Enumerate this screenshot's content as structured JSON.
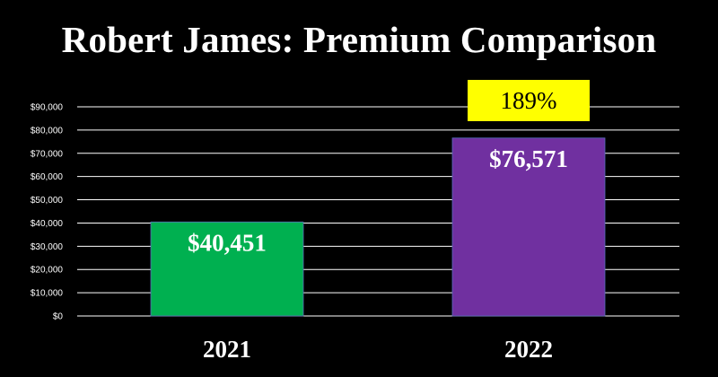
{
  "chart_data": {
    "type": "bar",
    "title": "Robert James: Premium Comparison",
    "categories": [
      "2021",
      "2022"
    ],
    "values": [
      40451,
      76571
    ],
    "value_labels": [
      "$40,451",
      "$76,571"
    ],
    "bar_colors": [
      "#00b050",
      "#7030a0"
    ],
    "ylim": [
      0,
      90000
    ],
    "yticks": [
      0,
      10000,
      20000,
      30000,
      40000,
      50000,
      60000,
      70000,
      80000,
      90000
    ],
    "ytick_labels": [
      "$0",
      "$10,000",
      "$20,000",
      "$30,000",
      "$40,000",
      "$50,000",
      "$60,000",
      "$70,000",
      "$80,000",
      "$90,000"
    ],
    "grid": true,
    "xlabel": "",
    "ylabel": "",
    "annotation": {
      "text": "189%",
      "category": "2022",
      "background": "#ffff00",
      "color": "#000000"
    }
  },
  "colors": {
    "background": "#000000",
    "text": "#ffffff",
    "grid": "#ffffff"
  }
}
